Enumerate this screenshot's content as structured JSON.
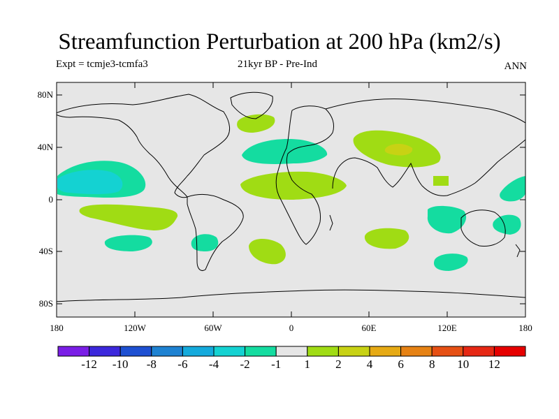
{
  "title": "Streamfunction Perturbation at 200 hPa (km2/s)",
  "subtitle_left": "Expt = tcmje3-tcmfa3",
  "subtitle_center": "21kyr BP - Pre-Ind",
  "subtitle_right": "ANN",
  "lat_ticks": [
    "80N",
    "40N",
    "0",
    "40S",
    "80S"
  ],
  "lon_ticks": [
    "180",
    "120W",
    "60W",
    "0",
    "60E",
    "120E",
    "180"
  ],
  "colorbar": {
    "labels": [
      "-12",
      "-10",
      "-8",
      "-6",
      "-4",
      "-2",
      "-1",
      "1",
      "2",
      "4",
      "6",
      "8",
      "10",
      "12"
    ],
    "colors": [
      "#7a1ee6",
      "#3c28dc",
      "#1e50d2",
      "#1e82d2",
      "#14aadc",
      "#14d2d2",
      "#14dca0",
      "#e6e6e6",
      "#a0dc14",
      "#c8d214",
      "#e6aa14",
      "#e68214",
      "#e65014",
      "#e62814",
      "#e60000"
    ]
  },
  "colors": {
    "ocean_background": "#e6e6e6",
    "coastline": "#000000"
  }
}
